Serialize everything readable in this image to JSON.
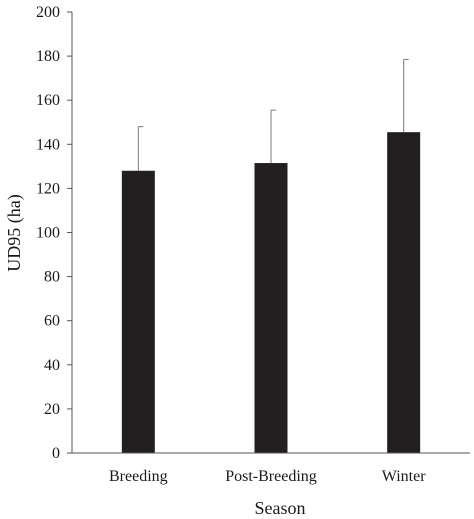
{
  "chart_data": {
    "type": "bar",
    "title": "",
    "xlabel": "Season",
    "ylabel": "UD95 (ha)",
    "categories": [
      "Breeding",
      "Post-Breeding",
      "Winter"
    ],
    "series": [
      {
        "values": [
          128,
          131.5,
          145.5
        ],
        "error_plus": [
          20,
          24,
          33
        ]
      }
    ],
    "ylim": [
      0,
      200
    ],
    "y_ticks": [
      "0",
      "20",
      "40",
      "60",
      "80",
      "100",
      "120",
      "140",
      "160",
      "180",
      "200"
    ],
    "grid": false,
    "legend": "none",
    "colors": {
      "bar": "#231f20",
      "axis": "#555555",
      "error_bar": "#7a7a7a"
    }
  }
}
